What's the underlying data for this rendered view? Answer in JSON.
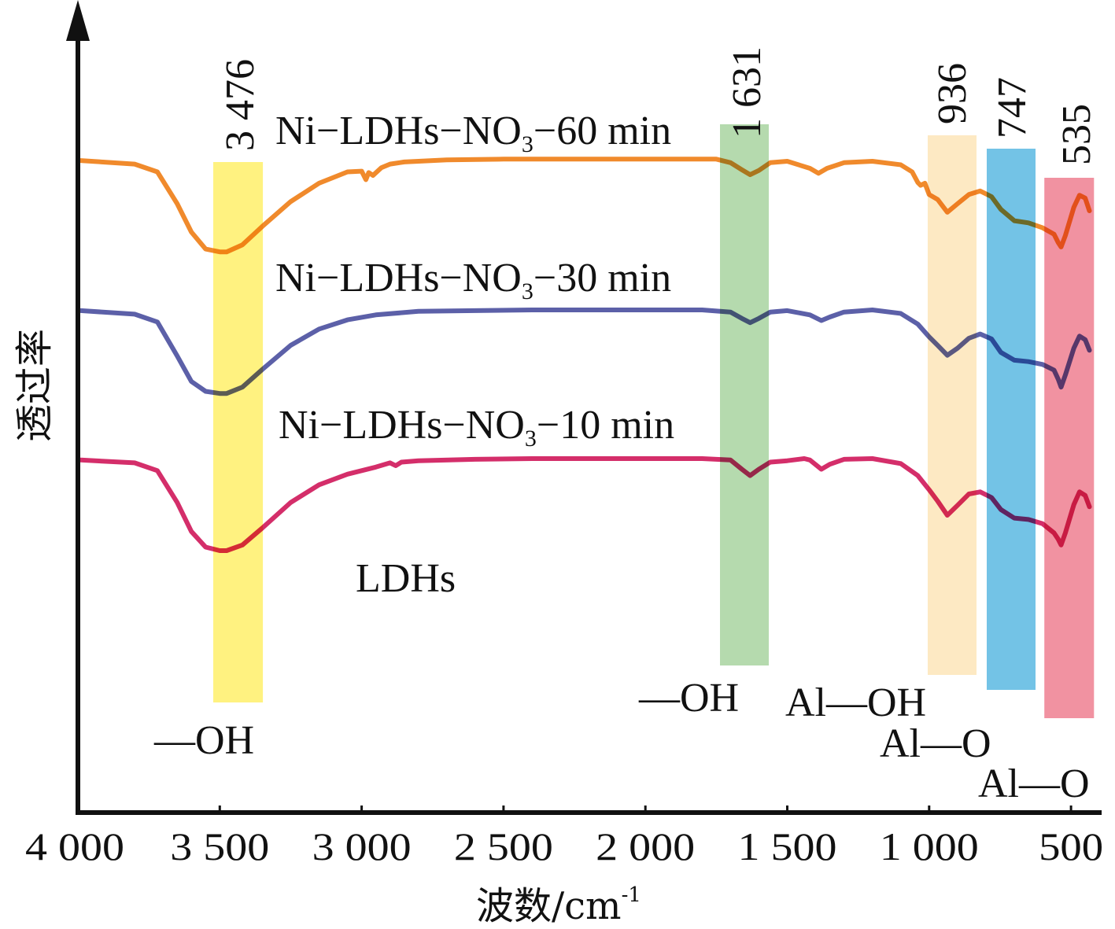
{
  "chart_data": {
    "type": "line",
    "title": "",
    "xlabel": "波数/cm",
    "xlabel_sup": "-1",
    "ylabel": "透过率",
    "xlim": [
      4000,
      420
    ],
    "x_reversed": true,
    "x_ticks": [
      4000,
      3500,
      3000,
      2500,
      2000,
      1500,
      1000,
      500
    ],
    "x_tick_labels": [
      "4 000",
      "3 500",
      "3 000",
      "2 500",
      "2 000",
      "1 500",
      "1 000",
      "500"
    ],
    "ylim": [
      0,
      100
    ],
    "y_units": "relative (arbitrary, no tick labels shown)",
    "grid": false,
    "legend": "inline labels above each curve",
    "series": [
      {
        "name": "Ni-LDHs-NO3-60 min",
        "label_main": "Ni−LDHs−NO",
        "label_sub": "3",
        "label_tail": "−60 min",
        "color": "#f08a2c",
        "x": [
          3990,
          3800,
          3720,
          3650,
          3600,
          3550,
          3500,
          3476,
          3420,
          3350,
          3250,
          3150,
          3050,
          3000,
          2985,
          2975,
          2960,
          2930,
          2900,
          2850,
          2700,
          2500,
          2300,
          2100,
          1900,
          1750,
          1700,
          1660,
          1631,
          1600,
          1560,
          1500,
          1420,
          1390,
          1360,
          1300,
          1200,
          1100,
          1060,
          1040,
          1030,
          1015,
          1000,
          970,
          936,
          900,
          860,
          820,
          780,
          747,
          700,
          650,
          600,
          560,
          545,
          535,
          520,
          490,
          470,
          450,
          435
        ],
        "y": [
          92.1,
          91.6,
          90.5,
          86.0,
          82.0,
          79.6,
          79.2,
          79.2,
          80.2,
          82.8,
          86.3,
          88.9,
          90.5,
          90.6,
          89.4,
          90.4,
          90.0,
          91.1,
          91.6,
          91.9,
          92.2,
          92.3,
          92.3,
          92.3,
          92.3,
          92.3,
          91.8,
          90.8,
          90.1,
          90.7,
          91.8,
          92.0,
          91.0,
          90.3,
          91.0,
          91.8,
          92.0,
          91.5,
          90.5,
          89.0,
          88.6,
          88.9,
          87.3,
          86.6,
          84.8,
          86.0,
          87.3,
          87.8,
          87.0,
          85.2,
          83.6,
          83.3,
          82.6,
          81.7,
          80.5,
          79.9,
          81.5,
          85.5,
          87.2,
          86.8,
          85.0
        ]
      },
      {
        "name": "Ni-LDHs-NO3-30 min",
        "label_main": "Ni−LDHs−NO",
        "label_sub": "3",
        "label_tail": "−30 min",
        "color": "#5c60a8",
        "x": [
          3990,
          3800,
          3720,
          3650,
          3600,
          3550,
          3500,
          3476,
          3420,
          3350,
          3250,
          3150,
          3050,
          2950,
          2800,
          2600,
          2400,
          2200,
          2000,
          1800,
          1700,
          1660,
          1631,
          1600,
          1560,
          1500,
          1420,
          1380,
          1350,
          1300,
          1200,
          1100,
          1040,
          1000,
          970,
          936,
          900,
          860,
          820,
          780,
          747,
          700,
          650,
          600,
          560,
          545,
          535,
          520,
          490,
          470,
          450,
          435
        ],
        "y": [
          70.9,
          70.4,
          69.3,
          64.5,
          60.9,
          59.5,
          59.2,
          59.2,
          60.1,
          62.6,
          66.0,
          68.3,
          69.6,
          70.3,
          70.8,
          70.9,
          71.0,
          71.0,
          71.0,
          71.0,
          70.7,
          69.8,
          69.2,
          69.8,
          70.7,
          70.9,
          70.3,
          69.5,
          70.0,
          70.7,
          71.0,
          70.5,
          69.0,
          67.2,
          66.0,
          64.6,
          65.6,
          67.0,
          67.6,
          66.9,
          65.0,
          63.9,
          63.7,
          63.3,
          62.5,
          61.2,
          60.1,
          61.8,
          65.6,
          67.3,
          66.8,
          65.3
        ]
      },
      {
        "name": "Ni-LDHs-NO3-10 min",
        "label_main": "Ni−LDHs−NO",
        "label_sub": "3",
        "label_tail": "−10 min",
        "color": "#d42e6a",
        "x": [
          3990,
          3800,
          3720,
          3650,
          3600,
          3550,
          3500,
          3476,
          3420,
          3350,
          3250,
          3150,
          3050,
          2950,
          2900,
          2880,
          2860,
          2800,
          2600,
          2400,
          2200,
          2000,
          1800,
          1700,
          1660,
          1631,
          1600,
          1560,
          1500,
          1440,
          1420,
          1380,
          1350,
          1300,
          1200,
          1100,
          1040,
          1000,
          970,
          936,
          900,
          860,
          820,
          780,
          747,
          700,
          650,
          600,
          560,
          545,
          535,
          520,
          490,
          470,
          450,
          435
        ],
        "y": [
          49.8,
          49.4,
          48.3,
          43.8,
          39.7,
          37.5,
          37.0,
          37.0,
          37.8,
          40.2,
          43.8,
          46.3,
          47.8,
          48.8,
          49.4,
          49.0,
          49.5,
          49.7,
          49.9,
          50.0,
          50.0,
          50.0,
          50.0,
          49.8,
          48.5,
          47.6,
          48.5,
          49.5,
          49.7,
          50.0,
          49.8,
          48.5,
          49.2,
          49.9,
          50.0,
          49.3,
          47.6,
          45.6,
          44.0,
          42.0,
          43.4,
          45.0,
          45.3,
          44.5,
          42.8,
          41.6,
          41.4,
          40.8,
          39.5,
          38.6,
          37.8,
          39.5,
          43.5,
          45.3,
          44.8,
          43.2
        ]
      }
    ],
    "annotations": {
      "bands": [
        {
          "peak": "3 476",
          "group": "—OH",
          "color": "#fff06a",
          "x_from": 3523,
          "x_to": 3348
        },
        {
          "peak": "1 631",
          "group": "—OH",
          "color": "#a8d4a0",
          "x_from": 1737,
          "x_to": 1565
        },
        {
          "peak": "936",
          "group": "Al—OH",
          "color": "#fde5b8",
          "x_from": 1005,
          "x_to": 833
        },
        {
          "peak": "747",
          "group": "Al—O",
          "color": "#5bb9e2",
          "x_from": 797,
          "x_to": 625
        },
        {
          "peak": "535",
          "group": "Al—O",
          "color": "#ef7f91",
          "x_from": 594,
          "x_to": 419
        }
      ]
    }
  },
  "series_label_ldhs": "LDHs"
}
